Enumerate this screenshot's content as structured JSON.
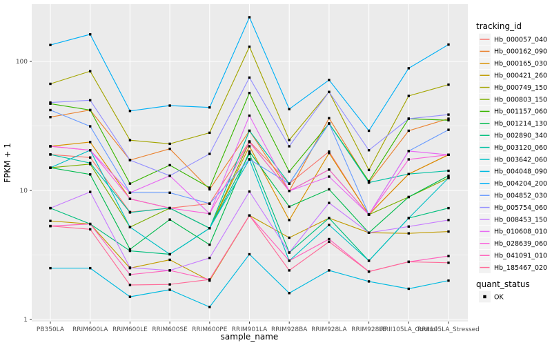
{
  "chart_data": {
    "type": "line",
    "title": "",
    "xlabel": "sample_name",
    "ylabel": "FPKM + 1",
    "y_scale": "log10",
    "ylim": [
      1,
      250
    ],
    "y_major_ticks": [
      "1",
      "10",
      "100"
    ],
    "y_major_values": [
      1,
      10,
      100
    ],
    "y_minor_values": [
      3.1623,
      31.623
    ],
    "legend_position": "right",
    "legend_title": "tracking_id",
    "legend2_title": "quant_status",
    "legend2_items": [
      {
        "label": "OK",
        "marker": "black-square"
      }
    ],
    "panel_bg": "#EBEBEB",
    "grid_color": "#FFFFFF",
    "tick_label_color": "#4D4D4D",
    "axis_title_color": "#000000",
    "marker": {
      "shape": "filled-square",
      "color": "#000000"
    },
    "categories": [
      "PB350LA",
      "RRIM600LA",
      "RRIM600LE",
      "RRIM600SE",
      "RRIM600PE",
      "RRIM901LA",
      "RRIM928BA",
      "RRIM928LA",
      "RRIM928LE",
      "RRII105LA_Control",
      "RRII105LA_Stressed"
    ],
    "series": [
      {
        "name": "Hb_000057_040",
        "color": "#F8766D",
        "values": [
          19,
          18,
          6.8,
          7.3,
          7.9,
          24,
          11.3,
          20,
          6.5,
          13.4,
          18.9
        ]
      },
      {
        "name": "Hb_000162_090",
        "color": "#EA8331",
        "values": [
          37,
          42,
          17.2,
          21,
          10.2,
          29,
          9.9,
          36.3,
          11.5,
          29,
          36
        ]
      },
      {
        "name": "Hb_000165_030",
        "color": "#D89000",
        "values": [
          22,
          23.7,
          8.6,
          7.3,
          5.1,
          22,
          5.9,
          19.5,
          6.5,
          13.4,
          18.9
        ]
      },
      {
        "name": "Hb_000421_260",
        "color": "#C09B00",
        "values": [
          5.8,
          5.5,
          2.5,
          2.9,
          2.0,
          6.4,
          4.3,
          6.1,
          4.7,
          4.65,
          4.8
        ]
      },
      {
        "name": "Hb_000749_150",
        "color": "#A3A500",
        "values": [
          67,
          84,
          24.5,
          23,
          28,
          130,
          24.6,
          58,
          14.4,
          54,
          66
        ]
      },
      {
        "name": "Hb_000803_150",
        "color": "#7CAE00",
        "values": [
          15,
          16,
          5.2,
          7.3,
          5.1,
          23.7,
          9.9,
          14.5,
          6.5,
          8.9,
          12.5
        ]
      },
      {
        "name": "Hb_001157_060",
        "color": "#39B600",
        "values": [
          47,
          42,
          11.3,
          15.7,
          10.5,
          57,
          14,
          33,
          11.8,
          36,
          35
        ]
      },
      {
        "name": "Hb_001214_130",
        "color": "#00BB4E",
        "values": [
          15,
          13.3,
          3.5,
          5.95,
          3.8,
          20,
          7.5,
          10.2,
          4.7,
          8.9,
          13
        ]
      },
      {
        "name": "Hb_002890_340",
        "color": "#00BF7D",
        "values": [
          7.3,
          5.5,
          3.4,
          3.2,
          5.1,
          19.2,
          3.3,
          6.1,
          2.85,
          6.1,
          7.3
        ]
      },
      {
        "name": "Hb_003120_060",
        "color": "#00C1A3",
        "values": [
          19,
          16.3,
          6.75,
          7.3,
          5.1,
          29,
          11.3,
          33,
          11.5,
          13.4,
          14.2
        ]
      },
      {
        "name": "Hb_003642_060",
        "color": "#00BFC4",
        "values": [
          15,
          20.5,
          5.2,
          3.2,
          5.1,
          17.4,
          2.85,
          5.4,
          2.85,
          6.1,
          12.5
        ]
      },
      {
        "name": "Hb_004048_090",
        "color": "#00BAE0",
        "values": [
          2.5,
          2.5,
          1.5,
          1.7,
          1.25,
          3.2,
          1.6,
          2.4,
          1.97,
          1.73,
          2.0
        ]
      },
      {
        "name": "Hb_004204_200",
        "color": "#00B0F6",
        "values": [
          134,
          162,
          41.3,
          45.5,
          44,
          220,
          42.7,
          71.8,
          29,
          88.5,
          135
        ]
      },
      {
        "name": "Hb_004852_030",
        "color": "#6A9CFF",
        "values": [
          42,
          31.4,
          9.6,
          9.6,
          7.9,
          17.4,
          11.3,
          33,
          6.5,
          20.2,
          29.5
        ]
      },
      {
        "name": "Hb_005754_060",
        "color": "#9590FF",
        "values": [
          48,
          50,
          17.2,
          13,
          19.2,
          75,
          22,
          58,
          20.5,
          36,
          38.7
        ]
      },
      {
        "name": "Hb_008453_150",
        "color": "#C77CFF",
        "values": [
          7.3,
          9.75,
          2.52,
          2.4,
          3.0,
          9.8,
          3.3,
          8.0,
          4.7,
          5.25,
          5.9
        ]
      },
      {
        "name": "Hb_010608_010",
        "color": "#E76BF3",
        "values": [
          22,
          20.5,
          9.6,
          13,
          6.6,
          38,
          9.9,
          12.8,
          6.5,
          20.2,
          18.9
        ]
      },
      {
        "name": "Hb_028639_060",
        "color": "#FA62DB",
        "values": [
          22,
          20.5,
          8.6,
          7.3,
          6.6,
          23.7,
          9.9,
          14.5,
          6.5,
          17.4,
          18.9
        ]
      },
      {
        "name": "Hb_041091_010",
        "color": "#FF62BC",
        "values": [
          5.3,
          5.5,
          2.23,
          2.4,
          2.04,
          6.4,
          2.85,
          4.2,
          2.35,
          2.8,
          3.1
        ]
      },
      {
        "name": "Hb_185467_020",
        "color": "#FF6A98",
        "values": [
          5.3,
          5.0,
          1.85,
          1.87,
          2.04,
          6.4,
          2.4,
          4.0,
          2.35,
          2.8,
          2.75
        ]
      }
    ]
  }
}
